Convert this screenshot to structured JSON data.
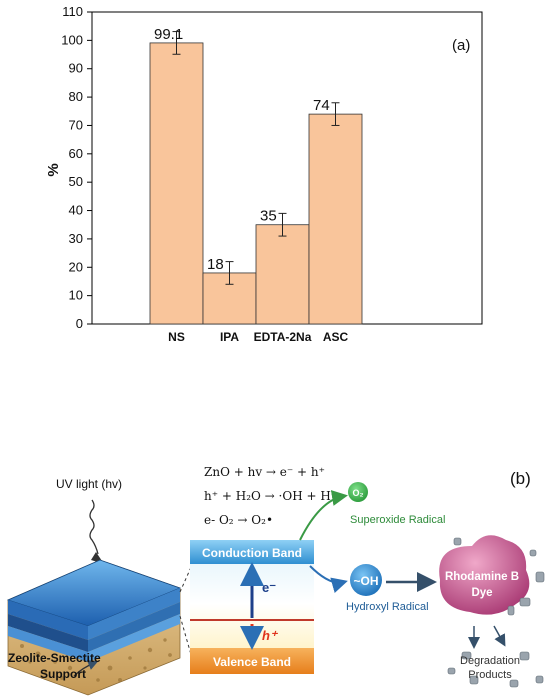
{
  "chart_data": {
    "type": "bar",
    "panel_label": "(a)",
    "ylabel": "%",
    "xlabel": "",
    "categories": [
      "NS",
      "IPA",
      "EDTA-2Na",
      "ASC"
    ],
    "values": [
      99.1,
      18,
      35,
      74
    ],
    "value_labels": [
      "99.1",
      "18",
      "35",
      "74"
    ],
    "error": [
      4,
      4,
      4,
      4
    ],
    "ylim": [
      0,
      110
    ],
    "yticks": [
      "0",
      "10",
      "20",
      "30",
      "40",
      "50",
      "60",
      "70",
      "80",
      "90",
      "100",
      "110"
    ],
    "bar_color": "#f9c59b",
    "bar_edge": "#333333",
    "grid": false
  },
  "schematic": {
    "panel_label": "(b)",
    "uv_label": "UV light (hv)",
    "support_label_1": "Zeolite-Smectite",
    "support_label_2": "Support",
    "eq1": "ZnO + hv → e⁻ + h⁺",
    "eq2": "h⁺ + H₂O → ·OH + H⁺",
    "eq3": "e- O₂ → O₂•",
    "conduction_band": "Conduction Band",
    "valence_band": "Valence Band",
    "electron": "e⁻",
    "hole": "h⁺",
    "o2_symbol": "O₂",
    "superoxide": "Superoxide Radical",
    "oh_symbol": "~OH",
    "hydroxyl": "Hydroxyl Radical",
    "dye_1": "Rhodamine B",
    "dye_2": "Dye",
    "products_1": "Degradation",
    "products_2": "Products",
    "colors": {
      "conduction": "#4aa8e0",
      "valence": "#f39a3a",
      "dye": "#c9578e",
      "text_blue": "#1e5c96",
      "text_green": "#2e8b3a"
    }
  }
}
